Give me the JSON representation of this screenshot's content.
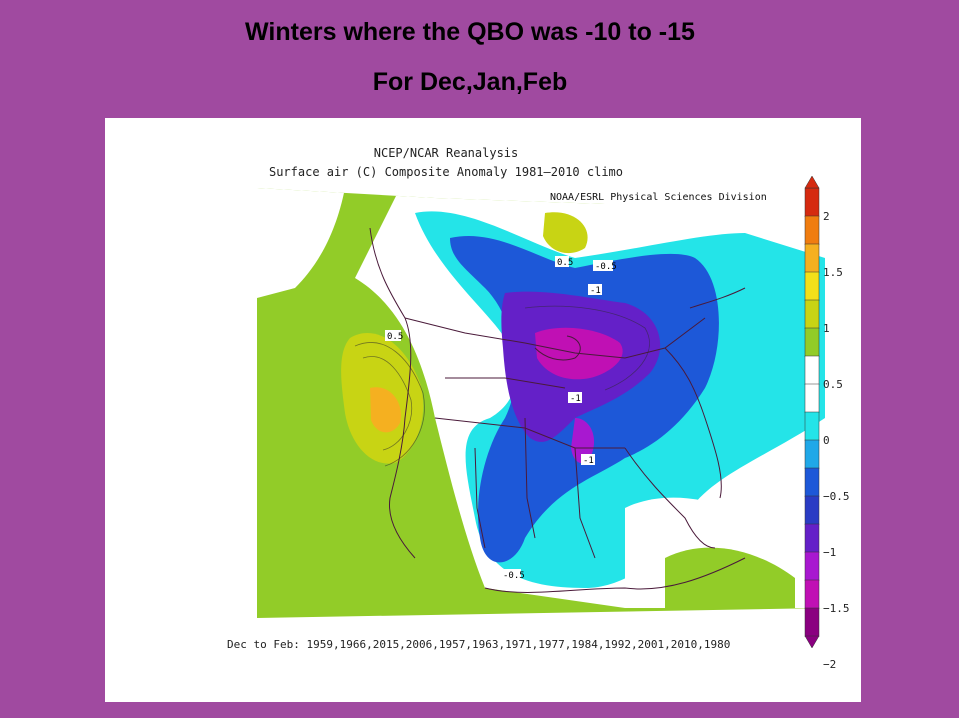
{
  "header": {
    "title": "Winters where the QBO was -10 to -15",
    "subtitle": "For Dec,Jan,Feb"
  },
  "map": {
    "source_line": "NCEP/NCAR Reanalysis",
    "variable_line": "Surface air (C) Composite Anomaly 1981–2010 climo",
    "credit": "NOAA/ESRL Physical Sciences Division",
    "years_caption": "Dec to Feb: 1959,1966,2015,2006,1957,1963,1971,1977,1984,1992,2001,2010,1980",
    "contour_labels": [
      "0.5",
      "-0.5",
      "-1",
      "-1",
      "-1",
      "-0.5",
      "0.5"
    ]
  },
  "colorbar": {
    "ticks": [
      "2",
      "1.5",
      "1",
      "0.5",
      "0",
      "−0.5",
      "−1",
      "−1.5",
      "−2"
    ],
    "colors": [
      "#d52a10",
      "#f07d10",
      "#f5b020",
      "#f2e01a",
      "#c8d414",
      "#92cc28",
      "#ffffff",
      "#ffffff",
      "#24e4e8",
      "#20a8e8",
      "#1d58d8",
      "#2a3cc4",
      "#6420c8",
      "#a818d0",
      "#c010b4",
      "#8a0080"
    ]
  }
}
